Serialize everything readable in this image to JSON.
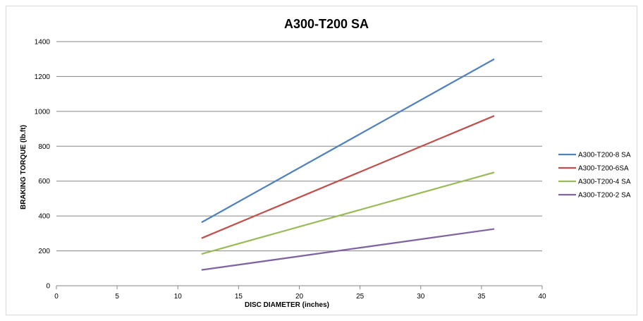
{
  "chart_data": {
    "type": "line",
    "title": "A300-T200 SA",
    "xlabel": "DISC DIAMETER (inches)",
    "ylabel": "BRAKING TORQUE (lb.ft)",
    "xlim": [
      0,
      40
    ],
    "ylim": [
      0,
      1400
    ],
    "x_ticks": [
      "0",
      "5",
      "10",
      "15",
      "20",
      "25",
      "30",
      "35",
      "40"
    ],
    "y_ticks": [
      "0",
      "200",
      "400",
      "600",
      "800",
      "1000",
      "1200",
      "1400"
    ],
    "grid": "horizontal",
    "legend_position": "right",
    "series": [
      {
        "name": "A300-T200-8 SA",
        "color": "#4f81bd",
        "x": [
          12,
          36
        ],
        "y": [
          365,
          1298
        ]
      },
      {
        "name": "A300-T200-6SA",
        "color": "#c0504d",
        "x": [
          12,
          36
        ],
        "y": [
          274,
          973
        ]
      },
      {
        "name": "A300-T200-4 SA",
        "color": "#9bbb59",
        "x": [
          12,
          36
        ],
        "y": [
          183,
          649
        ]
      },
      {
        "name": "A300-T200-2 SA",
        "color": "#8064a2",
        "x": [
          12,
          36
        ],
        "y": [
          91,
          325
        ]
      }
    ]
  }
}
